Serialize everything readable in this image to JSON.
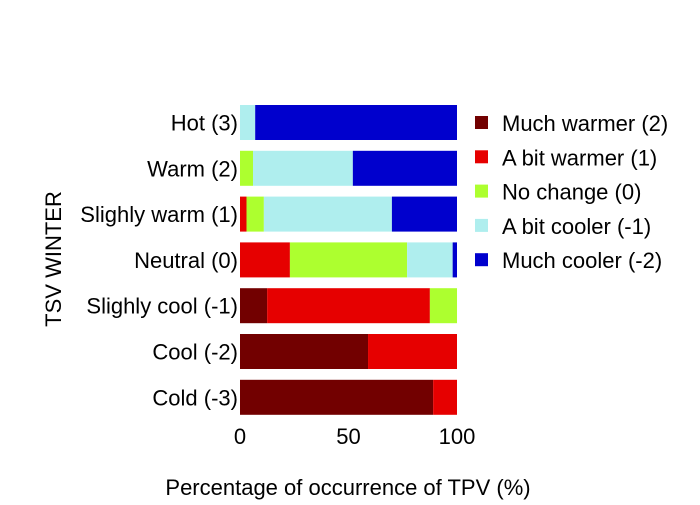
{
  "chart_data": {
    "type": "bar",
    "orientation": "horizontal",
    "stacked": true,
    "title": "",
    "ylabel": "TSV WINTER",
    "xlabel": "Percentage of occurrence of TPV (%)",
    "xlim": [
      0,
      100
    ],
    "xticks": [
      0,
      50,
      100
    ],
    "categories": [
      "Hot (3)",
      "Warm (2)",
      "Slighly warm (1)",
      "Neutral (0)",
      "Slighly cool (-1)",
      "Cool (-2)",
      "Cold (-3)"
    ],
    "series": [
      {
        "name": "Much warmer (2)",
        "color": "#720000",
        "values": [
          0,
          0,
          0,
          0,
          12.5,
          59,
          89
        ]
      },
      {
        "name": "A bit warmer (1)",
        "color": "#e60000",
        "values": [
          0,
          0,
          3,
          23,
          75,
          41,
          11
        ]
      },
      {
        "name": "No change (0)",
        "color": "#adff2f",
        "values": [
          0,
          6,
          8,
          54,
          12.5,
          0,
          0
        ]
      },
      {
        "name": "A bit cooler (-1)",
        "color": "#afeeee",
        "values": [
          7,
          46,
          59,
          21,
          0,
          0,
          0
        ]
      },
      {
        "name": "Much cooler (-2)",
        "color": "#0000cd",
        "values": [
          93,
          48,
          30,
          2,
          0,
          0,
          0
        ]
      }
    ],
    "legend_position": "right",
    "grid": false
  }
}
